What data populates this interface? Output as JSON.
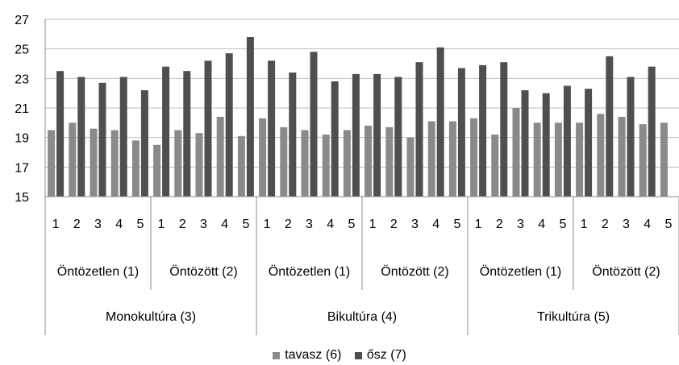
{
  "chart_data": {
    "type": "bar",
    "ylim": [
      15,
      27
    ],
    "yticks": [
      15,
      17,
      19,
      21,
      23,
      25,
      27
    ],
    "grid": true,
    "legend_position": "bottom",
    "colors": {
      "tavasz": "#8a8a8a",
      "osz": "#4f4f4f"
    },
    "categories": [
      "1",
      "2",
      "3",
      "4",
      "5",
      "1",
      "2",
      "3",
      "4",
      "5",
      "1",
      "2",
      "3",
      "4",
      "5",
      "1",
      "2",
      "3",
      "4",
      "5",
      "1",
      "2",
      "3",
      "4",
      "5",
      "1",
      "2",
      "3",
      "4",
      "5"
    ],
    "series": [
      {
        "name": "tavasz (6)",
        "values": [
          19.5,
          20.0,
          19.6,
          19.5,
          18.8,
          18.5,
          19.5,
          19.3,
          20.4,
          19.1,
          20.3,
          19.7,
          19.5,
          19.2,
          19.5,
          19.8,
          19.7,
          19.0,
          20.1,
          20.1,
          20.3,
          19.2,
          21.0,
          20.0,
          20.0,
          20.0,
          20.6,
          20.4,
          19.9,
          20.0
        ]
      },
      {
        "name": "ősz (7)",
        "values": [
          23.5,
          23.1,
          22.7,
          23.1,
          22.2,
          23.8,
          23.5,
          24.2,
          24.7,
          25.8,
          24.2,
          23.4,
          24.8,
          22.8,
          23.3,
          23.3,
          23.1,
          24.1,
          25.1,
          23.7,
          23.9,
          24.1,
          22.2,
          22.0,
          22.5,
          22.3,
          24.5,
          23.1,
          23.8,
          null
        ]
      }
    ],
    "groups_level1": [
      "Öntözetlen (1)",
      "Öntözött (2)",
      "Öntözetlen (1)",
      "Öntözött (2)",
      "Öntözetlen (1)",
      "Öntözött (2)"
    ],
    "groups_level2": [
      "Monokultúra (3)",
      "Bikultúra (4)",
      "Trikultúra (5)"
    ]
  }
}
